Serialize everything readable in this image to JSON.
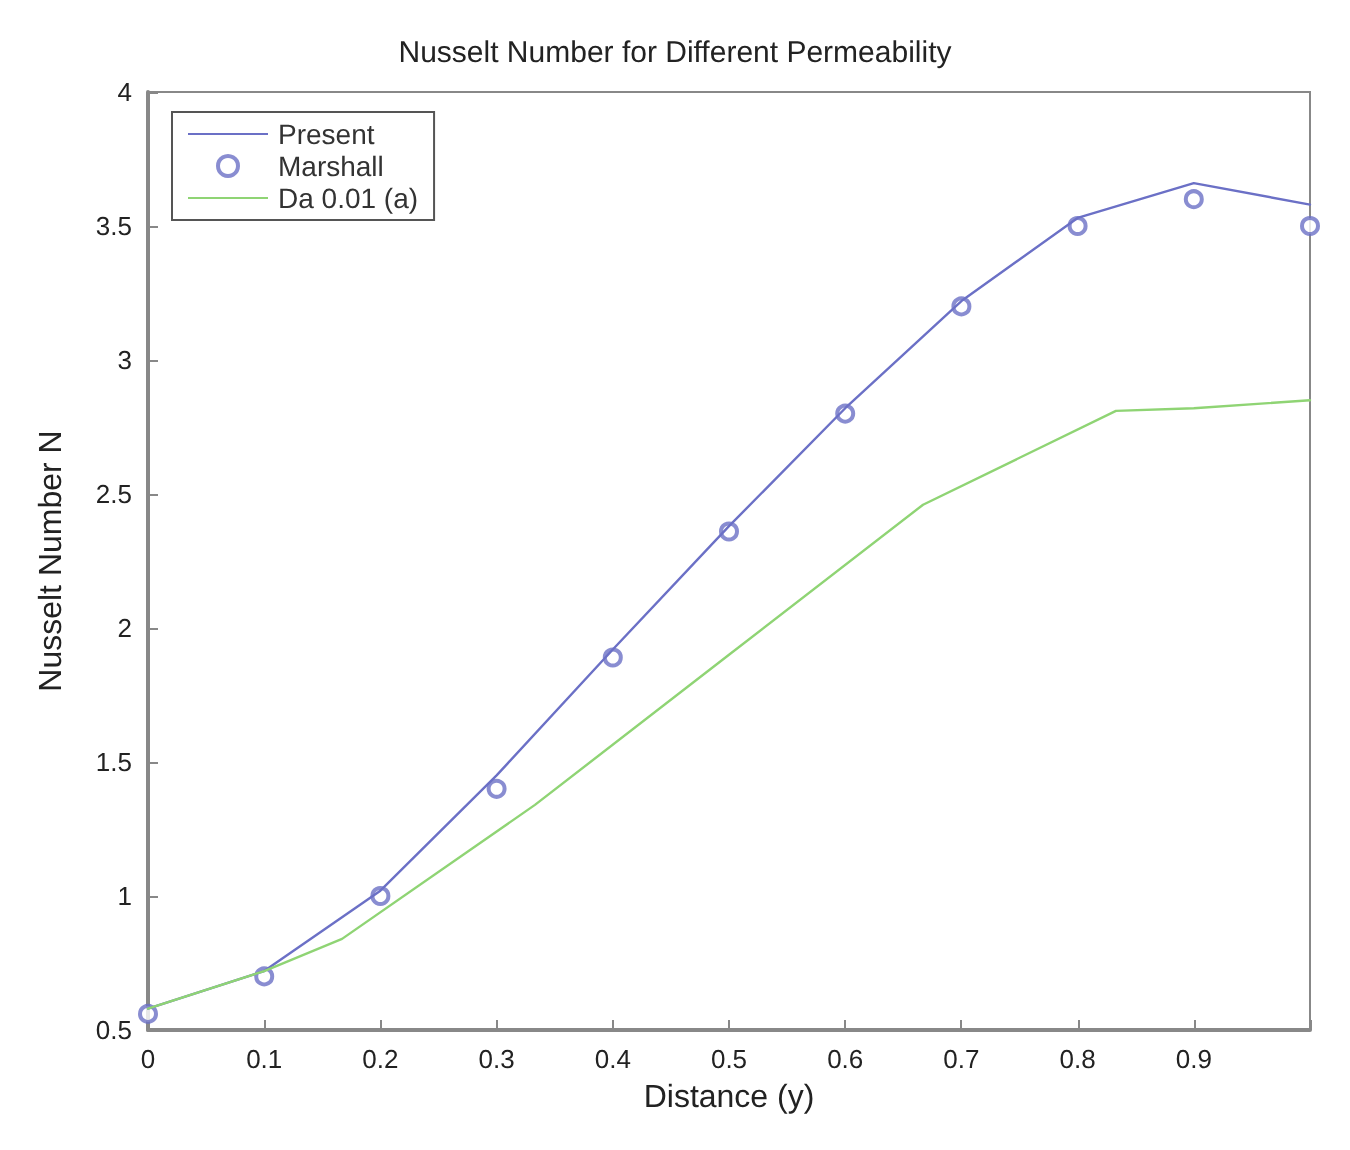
{
  "chart_data": {
    "type": "line",
    "title": "Nusselt Number for Different Permeability",
    "xlabel": "Distance (y)",
    "ylabel": "Nusselt Number N",
    "xlim": [
      0,
      1
    ],
    "xticks": [
      0,
      0.1,
      0.2,
      0.3,
      0.4,
      0.5,
      0.6,
      0.7,
      0.8,
      0.9,
      {
        "value": 1,
        "label": null
      }
    ],
    "ylim": [
      0.5,
      4
    ],
    "yticks": [
      0.5,
      1,
      1.5,
      2,
      2.5,
      3,
      3.5,
      4
    ],
    "grid": false,
    "legend": "top left",
    "series": [
      {
        "name": "Present",
        "type": "line",
        "marker": "none",
        "color": "#6b70c6",
        "x": [
          0,
          0.1,
          0.2,
          0.3,
          0.4,
          0.5,
          0.6,
          0.7,
          0.8,
          0.9,
          1
        ],
        "values": [
          0.58,
          0.72,
          1.02,
          1.45,
          1.92,
          2.38,
          2.82,
          3.22,
          3.53,
          3.66,
          3.58
        ]
      },
      {
        "name": "Marshall",
        "type": "scatter",
        "marker": "circle",
        "color": "#6b70c6",
        "x": [
          0,
          0.1,
          0.2,
          0.3,
          0.4,
          0.5,
          0.6,
          0.7,
          0.8,
          0.9,
          1
        ],
        "values": [
          0.56,
          0.7,
          1.0,
          1.4,
          1.89,
          2.36,
          2.8,
          3.2,
          3.5,
          3.6,
          3.5
        ]
      },
      {
        "name": "Da 0.01 (a)",
        "type": "line",
        "marker": "none",
        "color": "#8fd474",
        "x": [
          0,
          0.1,
          0.167,
          0.333,
          0.5,
          0.667,
          0.833,
          0.9,
          1
        ],
        "values": [
          0.58,
          0.72,
          0.84,
          1.34,
          1.9,
          2.46,
          2.81,
          2.82,
          2.85
        ]
      }
    ]
  }
}
